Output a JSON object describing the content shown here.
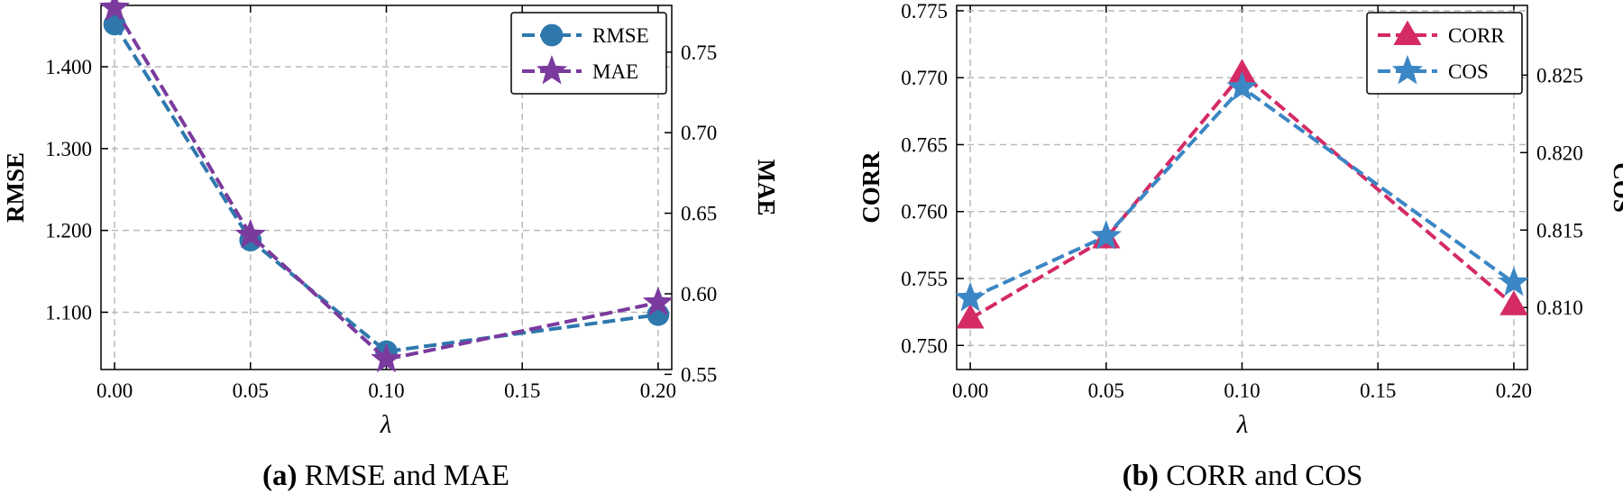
{
  "chart_data": [
    {
      "type": "line",
      "x_label": "λ",
      "x_ticks": [
        "0.00",
        "0.05",
        "0.10",
        "0.15",
        "0.20"
      ],
      "xlim": [
        -0.005,
        0.205
      ],
      "caption": {
        "tag": "(a)",
        "text": "RMSE and MAE"
      },
      "left_axis": {
        "label": "RMSE",
        "ylim": [
          1.03,
          1.475
        ],
        "ticks": [
          1.1,
          1.2,
          1.3,
          1.4
        ],
        "tick_labels": [
          "1.100",
          "1.200",
          "1.300",
          "1.400"
        ]
      },
      "right_axis": {
        "label": "MAE",
        "ylim": [
          0.553,
          0.779
        ],
        "ticks": [
          0.55,
          0.6,
          0.65,
          0.7,
          0.75
        ],
        "tick_labels": [
          "0.55",
          "0.60",
          "0.65",
          "0.70",
          "0.75"
        ]
      },
      "series": [
        {
          "name": "RMSE",
          "axis": "left",
          "color": "#2e78ad",
          "marker": "circle",
          "x": [
            0.0,
            0.05,
            0.1,
            0.2
          ],
          "values": [
            1.452,
            1.188,
            1.052,
            1.097
          ]
        },
        {
          "name": "MAE",
          "axis": "right",
          "color": "#7b3a9e",
          "marker": "star",
          "x": [
            0.0,
            0.05,
            0.1,
            0.2
          ],
          "values": [
            0.7775,
            0.6365,
            0.5593,
            0.5945
          ]
        }
      ],
      "legend": "top-right"
    },
    {
      "type": "line",
      "x_label": "λ",
      "x_ticks": [
        "0.00",
        "0.05",
        "0.10",
        "0.15",
        "0.20"
      ],
      "xlim": [
        -0.005,
        0.205
      ],
      "caption": {
        "tag": "(b)",
        "text": "CORR and COS"
      },
      "left_axis": {
        "label": "CORR",
        "ylim": [
          0.7482,
          0.7754
        ],
        "ticks": [
          0.75,
          0.755,
          0.76,
          0.765,
          0.77,
          0.775
        ],
        "tick_labels": [
          "0.750",
          "0.755",
          "0.760",
          "0.765",
          "0.770",
          "0.775"
        ]
      },
      "right_axis": {
        "label": "COS",
        "ylim": [
          0.806,
          0.8295
        ],
        "ticks": [
          0.81,
          0.815,
          0.82,
          0.825
        ],
        "tick_labels": [
          "0.810",
          "0.815",
          "0.820",
          "0.825"
        ]
      },
      "series": [
        {
          "name": "CORR",
          "axis": "left",
          "color": "#d42a66",
          "marker": "triangle",
          "x": [
            0.0,
            0.05,
            0.1,
            0.2
          ],
          "values": [
            0.752,
            0.758,
            0.7703,
            0.753
          ]
        },
        {
          "name": "COS",
          "axis": "right",
          "color": "#3b86c4",
          "marker": "star",
          "x": [
            0.0,
            0.05,
            0.1,
            0.2
          ],
          "values": [
            0.8106,
            0.8146,
            0.8242,
            0.8116
          ]
        }
      ],
      "legend": "top-right"
    }
  ]
}
